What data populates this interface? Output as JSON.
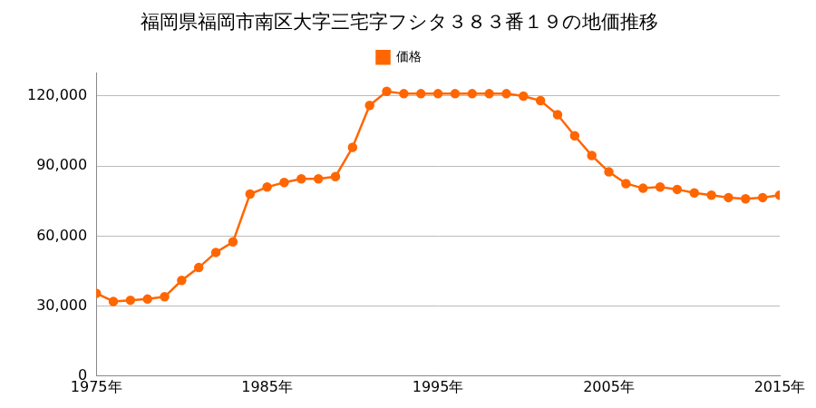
{
  "chart_data": {
    "type": "line",
    "title": "福岡県福岡市南区大字三宅字フシタ３８３番１９の地価推移",
    "x": [
      1975,
      1976,
      1977,
      1978,
      1979,
      1980,
      1981,
      1982,
      1983,
      1984,
      1985,
      1986,
      1987,
      1988,
      1989,
      1990,
      1991,
      1992,
      1993,
      1994,
      1995,
      1996,
      1997,
      1998,
      1999,
      2000,
      2001,
      2002,
      2003,
      2004,
      2005,
      2006,
      2007,
      2008,
      2009,
      2010,
      2011,
      2012,
      2013,
      2014,
      2015
    ],
    "series": [
      {
        "name": "価格",
        "color": "#ff6600",
        "marker": "circle",
        "values": [
          35500,
          32000,
          32500,
          33000,
          34000,
          41000,
          46500,
          53000,
          57500,
          78000,
          81000,
          83000,
          84500,
          84500,
          85500,
          98000,
          116000,
          122000,
          121000,
          121000,
          121000,
          121000,
          121000,
          121000,
          121000,
          120000,
          118000,
          112000,
          103000,
          94500,
          87500,
          82500,
          80500,
          81000,
          80000,
          78500,
          77500,
          76500,
          76000,
          76500,
          77500
        ]
      }
    ],
    "xlim": [
      1975,
      2015
    ],
    "xticks": [
      {
        "value": 1975,
        "label": "1975年"
      },
      {
        "value": 1985,
        "label": "1985年"
      },
      {
        "value": 1995,
        "label": "1995年"
      },
      {
        "value": 2005,
        "label": "2005年"
      },
      {
        "value": 2015,
        "label": "2015年"
      }
    ],
    "ylim": [
      0,
      130000
    ],
    "yticks": [
      0,
      {
        "value": 30000,
        "label": "30,000"
      },
      {
        "value": 60000,
        "label": "60,000"
      },
      {
        "value": 90000,
        "label": "90,000"
      },
      {
        "value": 120000,
        "label": "120,000"
      }
    ],
    "grid": true,
    "legend": "top"
  }
}
